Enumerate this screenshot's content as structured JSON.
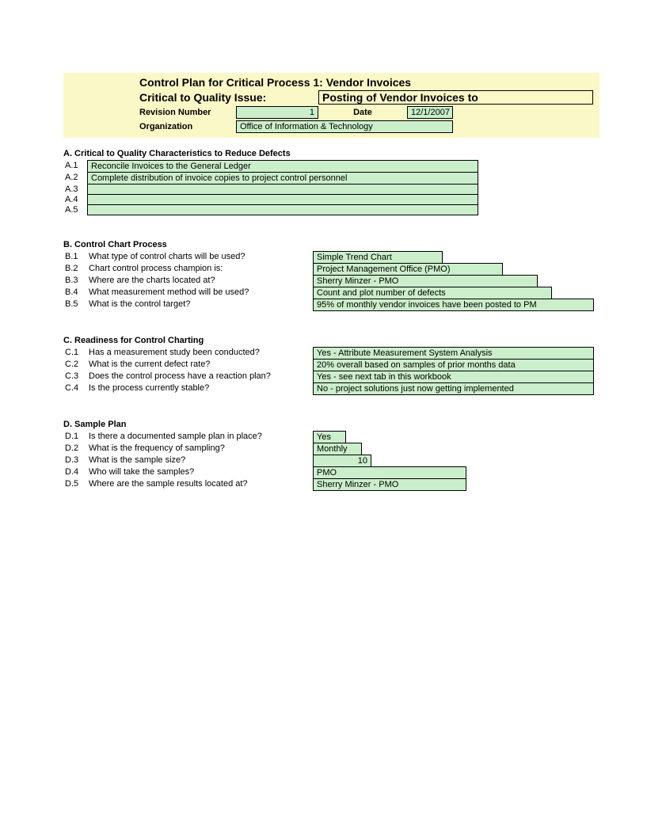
{
  "header": {
    "title": "Control Plan for Critical Process 1: Vendor Invoices",
    "issue_label": "Critical to Quality Issue:",
    "issue_value": "Posting of Vendor Invoices to",
    "revision_label": "Revision Number",
    "revision_value": "1",
    "date_label": "Date",
    "date_value": "12/1/2007",
    "organization_label": "Organization",
    "organization_value": "Office of Information & Technology"
  },
  "section_a": {
    "title": "A. Critical to Quality Characteristics to Reduce Defects",
    "rows": [
      {
        "num": "A.1",
        "value": "Reconcile Invoices to the General Ledger"
      },
      {
        "num": "A.2",
        "value": "Complete distribution of invoice copies to project control personnel"
      },
      {
        "num": "A.3",
        "value": ""
      },
      {
        "num": "A.4",
        "value": ""
      },
      {
        "num": "A.5",
        "value": ""
      }
    ]
  },
  "section_b": {
    "title": "B. Control Chart Process",
    "rows": [
      {
        "num": "B.1",
        "q": "What type of control charts will be used?",
        "value": "Simple Trend Chart"
      },
      {
        "num": "B.2",
        "q": "Chart control process champion is:",
        "value": "Project Management Office (PMO)"
      },
      {
        "num": "B.3",
        "q": "Where are the charts located at?",
        "value": "Sherry Minzer - PMO"
      },
      {
        "num": "B.4",
        "q": "What measurement method will be used?",
        "value": "Count and plot number of defects"
      },
      {
        "num": "B.5",
        "q": "What is the control target?",
        "value": "95% of monthly vendor invoices have been posted to PM"
      }
    ]
  },
  "section_c": {
    "title": "C. Readiness for Control Charting",
    "rows": [
      {
        "num": "C.1",
        "q": "Has a measurement study been conducted?",
        "value": "Yes - Attribute Measurement System Analysis"
      },
      {
        "num": "C.2",
        "q": "What is the current defect rate?",
        "value": "20% overall based on samples of prior months data"
      },
      {
        "num": "C.3",
        "q": "Does the control process have a reaction plan?",
        "value": "Yes - see next tab in this workbook"
      },
      {
        "num": "C.4",
        "q": "Is the process currently stable?",
        "value": "No - project solutions just now getting implemented"
      }
    ]
  },
  "section_d": {
    "title": "D. Sample Plan",
    "rows": [
      {
        "num": "D.1",
        "q": "Is there a documented sample plan in place?",
        "value": "Yes"
      },
      {
        "num": "D.2",
        "q": "What is the frequency of sampling?",
        "value": "Monthly"
      },
      {
        "num": "D.3",
        "q": "What is the sample size?",
        "value": "10"
      },
      {
        "num": "D.4",
        "q": "Who will take the samples?",
        "value": "PMO"
      },
      {
        "num": "D.5",
        "q": "Where are the sample results located at?",
        "value": "Sherry Minzer - PMO"
      }
    ]
  },
  "colors": {
    "header_bg": "#fbf8c8",
    "input_bg": "#cbeecb",
    "border": "#000000",
    "page_bg": "#ffffff"
  }
}
